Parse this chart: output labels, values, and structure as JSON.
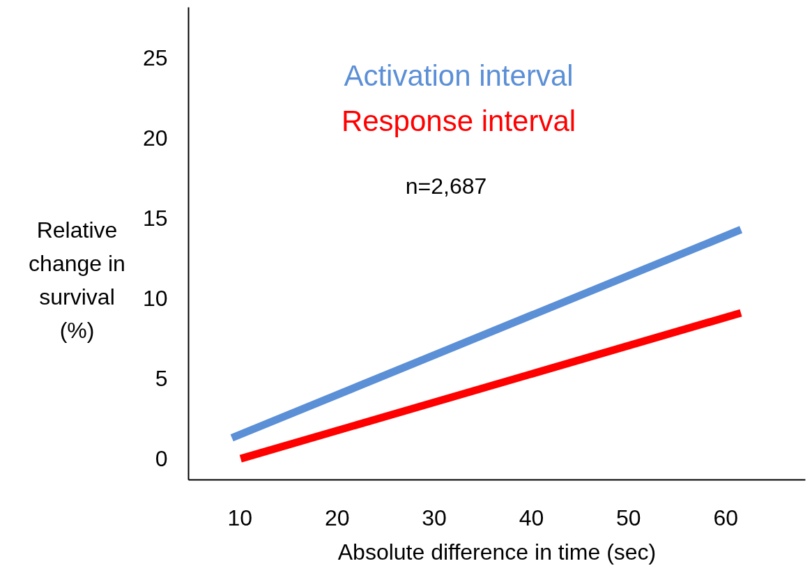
{
  "chart_data": {
    "type": "line",
    "xlabel": "Absolute difference in time (sec)",
    "ylabel": "Relative change in survival (%)",
    "annotations": [
      "n=2,687"
    ],
    "xlim": [
      4.7,
      68.2
    ],
    "ylim": [
      -1.3,
      28.2
    ],
    "xticks": [
      10,
      20,
      30,
      40,
      50,
      60
    ],
    "yticks": [
      0,
      5,
      10,
      15,
      20,
      25
    ],
    "grid": false,
    "legend": "top",
    "line_style": "solid",
    "marker": "none",
    "series": [
      {
        "name": "Activation interval",
        "color": "#5b8fd6",
        "x": [
          9.2,
          61.6
        ],
        "values": [
          1.3,
          14.3
        ]
      },
      {
        "name": "Response interval",
        "color": "#ff0000",
        "x": [
          10.1,
          61.6
        ],
        "values": [
          0,
          9.1
        ]
      }
    ]
  }
}
